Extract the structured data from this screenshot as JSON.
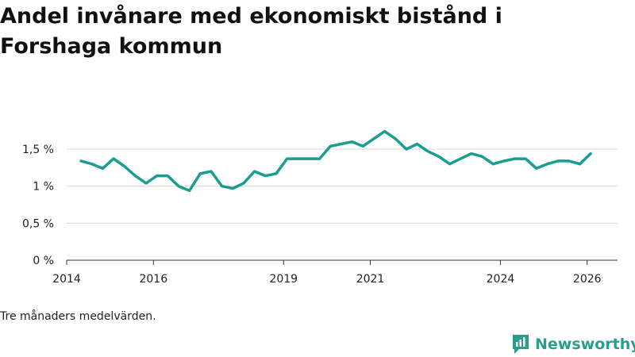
{
  "chart_data": {
    "type": "line",
    "title": "Andel invånare med ekonomiskt bistånd i Forshaga kommun",
    "xlabel": "",
    "ylabel": "",
    "yticks": [
      0,
      0.5,
      1,
      1.5
    ],
    "ytick_labels": [
      "0 %",
      "0,5 %",
      "1 %",
      "1,5 %"
    ],
    "ylim": [
      0,
      1.8
    ],
    "xlim": [
      2014.0,
      2026.7
    ],
    "xticks": [
      2014,
      2016,
      2019,
      2021,
      2024,
      2026
    ],
    "xtick_labels": [
      "2014",
      "2016",
      "2019",
      "2021",
      "2024",
      "2026"
    ],
    "grid": true,
    "color": "#1a9e8f",
    "series": [
      {
        "name": "Andel invånare med ekonomiskt bistånd",
        "x": [
          2014.33,
          2014.58,
          2014.83,
          2015.08,
          2015.33,
          2015.58,
          2015.83,
          2016.08,
          2016.33,
          2016.58,
          2016.83,
          2017.08,
          2017.33,
          2017.58,
          2017.83,
          2018.08,
          2018.33,
          2018.58,
          2018.83,
          2019.08,
          2019.33,
          2019.58,
          2019.83,
          2020.08,
          2020.33,
          2020.58,
          2020.83,
          2021.08,
          2021.33,
          2021.58,
          2021.83,
          2022.08,
          2022.33,
          2022.58,
          2022.83,
          2023.08,
          2023.33,
          2023.58,
          2023.83,
          2024.08,
          2024.33,
          2024.58,
          2024.83,
          2025.08,
          2025.33,
          2025.58,
          2025.83,
          2026.08
        ],
        "y": [
          1.34,
          1.3,
          1.24,
          1.37,
          1.27,
          1.14,
          1.04,
          1.14,
          1.14,
          1.0,
          0.94,
          1.17,
          1.2,
          1.0,
          0.97,
          1.04,
          1.2,
          1.14,
          1.17,
          1.37,
          1.37,
          1.37,
          1.37,
          1.54,
          1.57,
          1.6,
          1.54,
          1.64,
          1.74,
          1.64,
          1.5,
          1.57,
          1.47,
          1.4,
          1.3,
          1.37,
          1.44,
          1.4,
          1.3,
          1.34,
          1.37,
          1.37,
          1.24,
          1.3,
          1.34,
          1.34,
          1.3,
          1.44
        ]
      }
    ]
  },
  "note": "Tre månaders medelvärden.",
  "brand": {
    "name": "Newsworthy",
    "icon": "newsworthy-logo-icon"
  }
}
